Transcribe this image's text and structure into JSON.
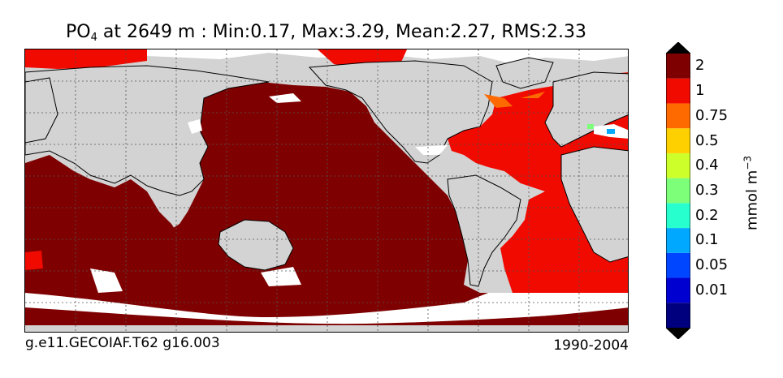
{
  "title": {
    "var_main": "PO",
    "var_sub": "4",
    "rest": " at 2649 m : Min:0.17, Max:3.29, Mean:2.27, RMS:2.33"
  },
  "footer": {
    "left": "g.e11.GECOIAF.T62 g16.003",
    "right": "1990-2004"
  },
  "colorbar": {
    "units_main": "mmol m",
    "units_sup": "−3",
    "levels": [
      {
        "label": "",
        "color": "#00007f"
      },
      {
        "label": "0.01",
        "color": "#0000d0"
      },
      {
        "label": "0.05",
        "color": "#0045ff"
      },
      {
        "label": "0.1",
        "color": "#00a8ff"
      },
      {
        "label": "0.2",
        "color": "#27ffce"
      },
      {
        "label": "0.3",
        "color": "#7dff7a"
      },
      {
        "label": "0.4",
        "color": "#cdff2a"
      },
      {
        "label": "0.5",
        "color": "#ffd000"
      },
      {
        "label": "0.75",
        "color": "#ff6a00"
      },
      {
        "label": "1",
        "color": "#f00a00"
      },
      {
        "label": "2",
        "color": "#7f0000"
      }
    ],
    "extend_min_color": "#000000",
    "extend_max_color": "#000000"
  },
  "map": {
    "land_color": "#d3d3d3",
    "missing_color": "#ffffff",
    "pacific_indian_color": "#7f0000",
    "atlantic_color": "#f00a00",
    "grid": true
  }
}
